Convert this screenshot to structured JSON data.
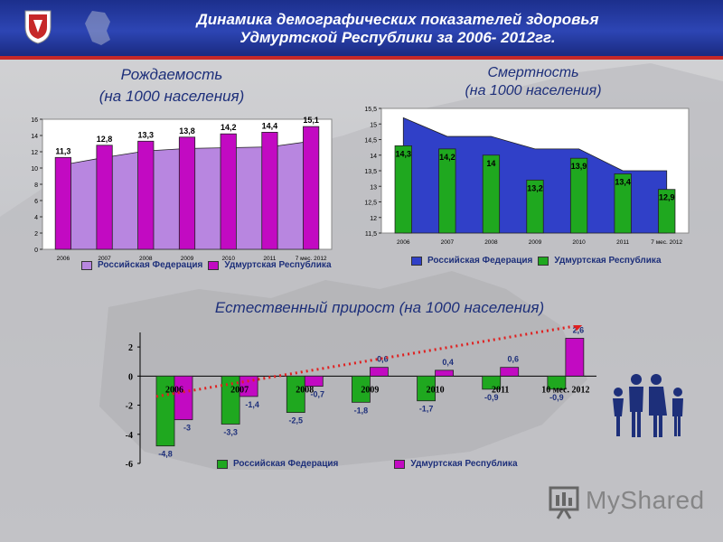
{
  "header": {
    "title_line1": "Динамика  демографических показателей здоровья",
    "title_line2": "Удмуртской Республики за 2006- 2012гг."
  },
  "colors": {
    "russia_birth": "#b886e0",
    "udmurt": "#c20ac2",
    "russia_death": "#3040c8",
    "green": "#1fa81f",
    "trend": "#e02020"
  },
  "watermark": {
    "text": "MyShared"
  },
  "chart_data": [
    {
      "type": "bar",
      "title_line1": "Рождаемость",
      "title_line2": "(на 1000 населения)",
      "categories": [
        "2006",
        "2007",
        "2008",
        "2009",
        "2010",
        "2011",
        "7 мес. 2012"
      ],
      "y_ticks": [
        "0",
        "2",
        "4",
        "6",
        "8",
        "10",
        "12",
        "14",
        "16"
      ],
      "ylim": [
        0,
        16
      ],
      "series": [
        {
          "name": "Российская Федерация",
          "values": [
            10.4,
            11.3,
            12.1,
            12.4,
            12.5,
            12.6,
            13.3
          ],
          "style": "area"
        },
        {
          "name": "Удмуртская Республика",
          "values": [
            11.3,
            12.8,
            13.3,
            13.8,
            14.2,
            14.4,
            15.1
          ],
          "style": "bar"
        }
      ],
      "data_labels": [
        "11,3",
        "12,8",
        "13,3",
        "13,8",
        "14,2",
        "14,4",
        "15,1"
      ],
      "legend": "bottom"
    },
    {
      "type": "bar",
      "title_line1": "Смертность",
      "title_line2": "(на 1000 населения)",
      "categories": [
        "2006",
        "2007",
        "2008",
        "2009",
        "2010",
        "2011",
        "7 мес. 2012"
      ],
      "y_ticks": [
        "11,5",
        "12",
        "12,5",
        "13",
        "13,5",
        "14",
        "14,5",
        "15",
        "15,5"
      ],
      "ylim": [
        11.5,
        15.5
      ],
      "series": [
        {
          "name": "Российская Федерация",
          "values": [
            15.2,
            14.6,
            14.6,
            14.2,
            14.2,
            13.5,
            13.5
          ],
          "style": "area"
        },
        {
          "name": "Удмуртская Республика",
          "values": [
            14.3,
            14.2,
            14.0,
            13.2,
            13.9,
            13.4,
            12.9
          ],
          "style": "bar"
        }
      ],
      "data_labels": [
        "14,3",
        "14,2",
        "14",
        "13,2",
        "13,9",
        "13,4",
        "12,9"
      ],
      "legend": "bottom"
    },
    {
      "type": "bar",
      "title": "Естественный прирост (на 1000 населения)",
      "categories": [
        "2006",
        "2007",
        "2008",
        "2009",
        "2010",
        "2011",
        "10 мес. 2012"
      ],
      "y_ticks": [
        "2",
        "0",
        "-2",
        "-4",
        "-6"
      ],
      "ylim": [
        -6,
        3
      ],
      "series": [
        {
          "name": "Российская Федерация",
          "values": [
            -4.8,
            -3.3,
            -2.5,
            -1.8,
            -1.7,
            -0.9,
            -0.9
          ],
          "labels": [
            "-4,8",
            "-3,3",
            "-2,5",
            "-1,8",
            "-1,7",
            "-0,9",
            "-0,9"
          ]
        },
        {
          "name": "Удмуртская Республика",
          "values": [
            -3.0,
            -1.4,
            -0.7,
            0.6,
            0.4,
            0.6,
            2.6
          ],
          "labels": [
            "-3",
            "-1,4",
            "-0,7",
            "0,6",
            "0,4",
            "0,6",
            "2,6"
          ]
        }
      ],
      "legend": "bottom"
    }
  ]
}
